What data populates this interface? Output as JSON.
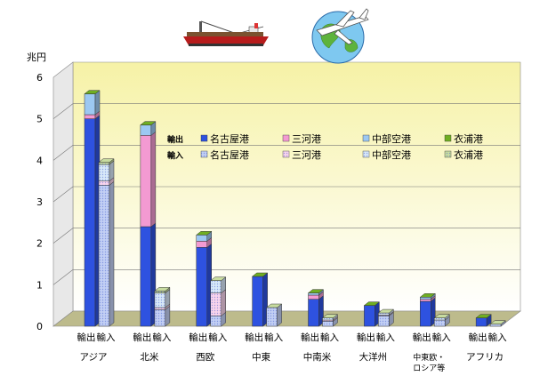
{
  "chart_data": {
    "type": "bar",
    "unit_label": "兆円",
    "ylim": [
      0,
      6
    ],
    "yticks": [
      "0",
      "1",
      "2",
      "3",
      "4",
      "5",
      "6"
    ],
    "regions": [
      "アジア",
      "北米",
      "西欧",
      "中東",
      "中南米",
      "大洋州",
      "中東欧・ロシア等",
      "アフリカ"
    ],
    "region_lines": [
      [
        "アジア"
      ],
      [
        "北米"
      ],
      [
        "西欧"
      ],
      [
        "中東"
      ],
      [
        "中南米"
      ],
      [
        "大洋州"
      ],
      [
        "中東欧・",
        "ロシア等"
      ],
      [
        "アフリカ"
      ]
    ],
    "bar_kinds": [
      "輸出",
      "輸入"
    ],
    "ports": [
      "名古屋港",
      "三河港",
      "中部空港",
      "衣浦港"
    ],
    "legend_rows": [
      {
        "kind": "輸出",
        "labels": [
          "名古屋港",
          "三河港",
          "中部空港",
          "衣浦港"
        ]
      },
      {
        "kind": "輸入",
        "labels": [
          "名古屋港",
          "三河港",
          "中部空港",
          "衣浦港"
        ]
      }
    ],
    "colors": {
      "export": [
        "#2e52e0",
        "#f39ad2",
        "#9cc8f2",
        "#6fae22"
      ],
      "import": [
        "#c2cff4",
        "#f9d4ec",
        "#d8e8f8",
        "#c8dca0"
      ]
    },
    "series": [
      {
        "name": "輸出 名古屋港",
        "values": [
          5.0,
          2.4,
          1.9,
          1.2,
          0.65,
          0.5,
          0.6,
          0.2
        ]
      },
      {
        "name": "輸出 三河港",
        "values": [
          0.1,
          2.2,
          0.15,
          0.0,
          0.1,
          0.0,
          0.05,
          0.0
        ]
      },
      {
        "name": "輸出 中部空港",
        "values": [
          0.5,
          0.25,
          0.15,
          0.0,
          0.05,
          0.0,
          0.05,
          0.0
        ]
      },
      {
        "name": "輸出 衣浦港",
        "values": [
          0.0,
          0.0,
          0.0,
          0.0,
          0.0,
          0.0,
          0.0,
          0.0
        ]
      },
      {
        "name": "輸入 名古屋港",
        "values": [
          3.4,
          0.4,
          0.25,
          0.45,
          0.12,
          0.25,
          0.15,
          0.05
        ]
      },
      {
        "name": "輸入 三河港",
        "values": [
          0.1,
          0.05,
          0.55,
          0.0,
          0.03,
          0.02,
          0.0,
          0.0
        ]
      },
      {
        "name": "輸入 中部空港",
        "values": [
          0.4,
          0.35,
          0.3,
          0.0,
          0.05,
          0.05,
          0.05,
          0.0
        ]
      },
      {
        "name": "輸入 衣浦港",
        "values": [
          0.05,
          0.05,
          0.0,
          0.0,
          0.0,
          0.0,
          0.0,
          0.0
        ]
      }
    ]
  },
  "decorations": {
    "ship_icon": "cargo-ship-icon",
    "plane_icon": "airplane-globe-icon"
  }
}
